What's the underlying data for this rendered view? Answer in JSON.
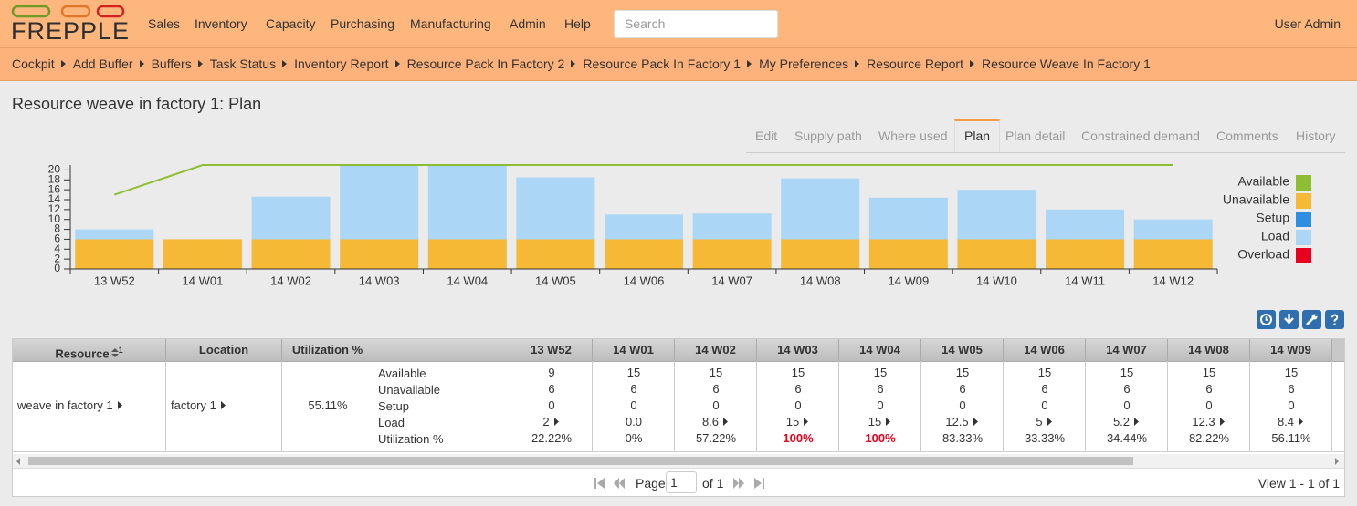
{
  "header": {
    "logo": "FREPPLE",
    "menu": [
      "Sales",
      "Inventory",
      "Capacity",
      "Purchasing",
      "Manufacturing",
      "Admin",
      "Help"
    ],
    "search_placeholder": "Search",
    "user": "User Admin"
  },
  "breadcrumbs": [
    "Cockpit",
    "Add Buffer",
    "Buffers",
    "Task Status",
    "Inventory Report",
    "Resource Pack In Factory 2",
    "Resource Pack In Factory 1",
    "My Preferences",
    "Resource Report",
    "Resource Weave In Factory 1"
  ],
  "title": "Resource weave in factory 1: Plan",
  "tabs": [
    "Edit",
    "Supply path",
    "Where used",
    "Plan",
    "Plan detail",
    "Constrained demand",
    "Comments",
    "History"
  ],
  "active_tab": "Plan",
  "chart_data": {
    "type": "bar",
    "stacked": true,
    "categories": [
      "13 W52",
      "14 W01",
      "14 W02",
      "14 W03",
      "14 W04",
      "14 W05",
      "14 W06",
      "14 W07",
      "14 W08",
      "14 W09",
      "14 W10",
      "14 W11",
      "14 W12"
    ],
    "series": [
      {
        "name": "Available",
        "type": "line",
        "stack_base": "Unavailable",
        "color": "#8cbd33",
        "values": [
          9,
          15,
          15,
          15,
          15,
          15,
          15,
          15,
          15,
          15,
          15,
          15,
          15
        ]
      },
      {
        "name": "Unavailable",
        "color": "#f5b935",
        "values": [
          6,
          6,
          6,
          6,
          6,
          6,
          6,
          6,
          6,
          6,
          6,
          6,
          6
        ]
      },
      {
        "name": "Setup",
        "color": "#2e8fe2",
        "values": [
          0,
          0,
          0,
          0,
          0,
          0,
          0,
          0,
          0,
          0,
          0,
          0,
          0
        ]
      },
      {
        "name": "Load",
        "color": "#acd6f5",
        "values": [
          2,
          0,
          8.6,
          15,
          15,
          12.5,
          5,
          5.2,
          12.3,
          8.4,
          10,
          6,
          4
        ]
      },
      {
        "name": "Overload",
        "color": "#e8001c",
        "values": [
          0,
          0,
          0,
          0,
          0,
          0,
          0,
          0,
          0,
          0,
          0,
          0,
          0
        ]
      }
    ],
    "ylim": [
      0,
      21
    ],
    "yticks": [
      0,
      2,
      4,
      6,
      8,
      10,
      12,
      14,
      16,
      18,
      20
    ],
    "legend": "right"
  },
  "table": {
    "headers": [
      "Resource",
      "Location",
      "Utilization %",
      "",
      "13 W52",
      "14 W01",
      "14 W02",
      "14 W03",
      "14 W04",
      "14 W05",
      "14 W06",
      "14 W07",
      "14 W08",
      "14 W09"
    ],
    "sort_order": "1",
    "rows": [
      {
        "resource": "weave in factory 1",
        "location": "factory 1",
        "utilization": "55.11%",
        "measures": [
          "Available",
          "Unavailable",
          "Setup",
          "Load",
          "Utilization %"
        ],
        "weeks": [
          [
            "9",
            "6",
            "0",
            "2",
            "22.22%"
          ],
          [
            "15",
            "6",
            "0",
            "0.0",
            "0%"
          ],
          [
            "15",
            "6",
            "0",
            "8.6",
            "57.22%"
          ],
          [
            "15",
            "6",
            "0",
            "15",
            "100%"
          ],
          [
            "15",
            "6",
            "0",
            "15",
            "100%"
          ],
          [
            "15",
            "6",
            "0",
            "12.5",
            "83.33%"
          ],
          [
            "15",
            "6",
            "0",
            "5",
            "33.33%"
          ],
          [
            "15",
            "6",
            "0",
            "5.2",
            "34.44%"
          ],
          [
            "15",
            "6",
            "0",
            "12.3",
            "82.22%"
          ],
          [
            "15",
            "6",
            "0",
            "8.4",
            "56.11%"
          ]
        ],
        "load_links": [
          true,
          false,
          true,
          true,
          true,
          true,
          true,
          true,
          true,
          true
        ],
        "overloaded": [
          false,
          false,
          false,
          true,
          true,
          false,
          false,
          false,
          false,
          false
        ]
      }
    ]
  },
  "pager": {
    "page_label": "Page",
    "page": "1",
    "of": "of 1",
    "view": "View 1 - 1 of 1"
  }
}
